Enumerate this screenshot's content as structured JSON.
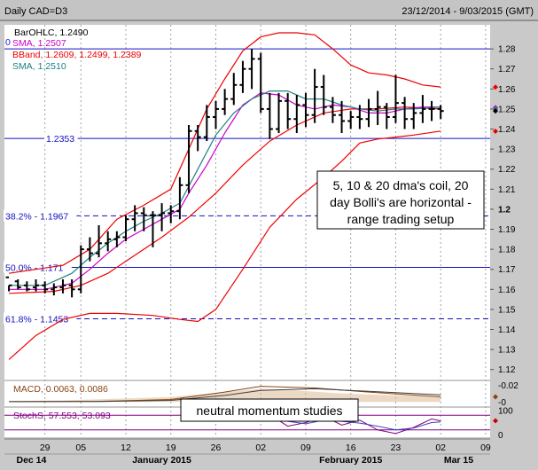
{
  "chart_data": {
    "type": "ohlc",
    "title": "Daily CAD=D3",
    "date_range": "23/12/2014 - 9/03/2015 (GMT)",
    "price_axis": {
      "ylim": [
        1.115,
        1.292
      ],
      "ticks": [
        "1.28",
        "1.27",
        "1.26",
        "1.25",
        "1.24",
        "1.23",
        "1.22",
        "1.21",
        "1.2",
        "1.19",
        "1.18",
        "1.17",
        "1.16",
        "1.15",
        "1.14",
        "1.13",
        "1.12"
      ]
    },
    "x_axis": {
      "ticks": [
        {
          "label": "29",
          "i": 4
        },
        {
          "label": "05",
          "i": 8
        },
        {
          "label": "12",
          "i": 13
        },
        {
          "label": "19",
          "i": 18
        },
        {
          "label": "26",
          "i": 23
        },
        {
          "label": "02",
          "i": 28
        },
        {
          "label": "09",
          "i": 33
        },
        {
          "label": "16",
          "i": 38
        },
        {
          "label": "23",
          "i": 43
        },
        {
          "label": "02",
          "i": 48
        },
        {
          "label": "09",
          "i": 53
        }
      ],
      "months": [
        {
          "label": "Dec 14",
          "i": 2.5
        },
        {
          "label": "January 2015",
          "i": 17
        },
        {
          "label": "February 2015",
          "i": 38
        },
        {
          "label": "Mar 15",
          "i": 50
        }
      ],
      "n_slots": 54
    },
    "legend": [
      {
        "text": "BarOHLC, 1.2490",
        "color": "#000000"
      },
      {
        "text": "SMA, 1.2507",
        "color": "#cc00cc"
      },
      {
        "text": "BBand, 1.2609, 1.2499, 1.2389",
        "color": "#ee0000"
      },
      {
        "text": "SMA, 1.2510",
        "color": "#208080"
      }
    ],
    "legend_prefix": "0",
    "right_markers": [
      {
        "y": 1.2609,
        "color": "#ee0000"
      },
      {
        "y": 1.2507,
        "color": "#cc00cc"
      },
      {
        "y": 1.2499,
        "color": "#208080"
      },
      {
        "y": 1.249,
        "color": "#000000"
      },
      {
        "y": 1.2389,
        "color": "#ee0000"
      }
    ],
    "reference_lines": [
      {
        "y": 1.28,
        "style": "solid",
        "label": ""
      },
      {
        "y": 1.2353,
        "style": "solid",
        "label": "1.2353"
      },
      {
        "y": 1.1967,
        "style": "dashed",
        "label": "38.2% - 1.1967"
      },
      {
        "y": 1.171,
        "style": "solid",
        "label": "50.0% - 1.171"
      },
      {
        "y": 1.1453,
        "style": "dashed",
        "label": "61.8% - 1.1453"
      }
    ],
    "bars": [
      [
        1.166,
        1.162,
        1.159,
        1.162
      ],
      [
        1.164,
        1.165,
        1.16,
        1.161
      ],
      [
        1.162,
        1.164,
        1.159,
        1.16
      ],
      [
        1.161,
        1.165,
        1.159,
        1.162
      ],
      [
        1.162,
        1.164,
        1.158,
        1.16
      ],
      [
        1.16,
        1.163,
        1.157,
        1.161
      ],
      [
        1.161,
        1.165,
        1.158,
        1.162
      ],
      [
        1.162,
        1.165,
        1.156,
        1.16
      ],
      [
        1.16,
        1.182,
        1.158,
        1.18
      ],
      [
        1.18,
        1.186,
        1.174,
        1.178
      ],
      [
        1.178,
        1.192,
        1.176,
        1.183
      ],
      [
        1.183,
        1.189,
        1.179,
        1.185
      ],
      [
        1.185,
        1.189,
        1.181,
        1.186
      ],
      [
        1.186,
        1.197,
        1.184,
        1.195
      ],
      [
        1.195,
        1.202,
        1.189,
        1.198
      ],
      [
        1.198,
        1.201,
        1.189,
        1.197
      ],
      [
        1.197,
        1.199,
        1.181,
        1.197
      ],
      [
        1.197,
        1.203,
        1.189,
        1.198
      ],
      [
        1.198,
        1.202,
        1.193,
        1.199
      ],
      [
        1.199,
        1.216,
        1.195,
        1.212
      ],
      [
        1.212,
        1.242,
        1.208,
        1.239
      ],
      [
        1.239,
        1.242,
        1.229,
        1.236
      ],
      [
        1.236,
        1.252,
        1.234,
        1.246
      ],
      [
        1.246,
        1.254,
        1.24,
        1.25
      ],
      [
        1.25,
        1.26,
        1.247,
        1.255
      ],
      [
        1.255,
        1.268,
        1.252,
        1.262
      ],
      [
        1.262,
        1.274,
        1.258,
        1.27
      ],
      [
        1.27,
        1.28,
        1.26,
        1.275
      ],
      [
        1.275,
        1.278,
        1.248,
        1.25
      ],
      [
        1.25,
        1.258,
        1.235,
        1.24
      ],
      [
        1.24,
        1.258,
        1.238,
        1.254
      ],
      [
        1.254,
        1.258,
        1.24,
        1.245
      ],
      [
        1.245,
        1.257,
        1.238,
        1.252
      ],
      [
        1.252,
        1.258,
        1.241,
        1.247
      ],
      [
        1.247,
        1.27,
        1.243,
        1.261
      ],
      [
        1.261,
        1.267,
        1.247,
        1.251
      ],
      [
        1.251,
        1.256,
        1.243,
        1.247
      ],
      [
        1.247,
        1.254,
        1.238,
        1.244
      ],
      [
        1.244,
        1.249,
        1.24,
        1.246
      ],
      [
        1.246,
        1.252,
        1.24,
        1.245
      ],
      [
        1.245,
        1.255,
        1.241,
        1.25
      ],
      [
        1.25,
        1.259,
        1.242,
        1.251
      ],
      [
        1.251,
        1.253,
        1.24,
        1.246
      ],
      [
        1.246,
        1.267,
        1.243,
        1.253
      ],
      [
        1.253,
        1.256,
        1.24,
        1.245
      ],
      [
        1.245,
        1.253,
        1.24,
        1.248
      ],
      [
        1.248,
        1.257,
        1.243,
        1.25
      ],
      [
        1.25,
        1.254,
        1.244,
        1.25
      ],
      [
        1.25,
        1.252,
        1.245,
        1.249
      ]
    ],
    "series": [
      {
        "name": "BBand",
        "color": "#ee0000",
        "values": [
          [
            0,
            1.125
          ],
          [
            3,
            1.137
          ],
          [
            6,
            1.145
          ],
          [
            9,
            1.148
          ],
          [
            12,
            1.148
          ],
          [
            16,
            1.147
          ],
          [
            19,
            1.145
          ],
          [
            21,
            1.144
          ],
          [
            23,
            1.15
          ],
          [
            26,
            1.17
          ],
          [
            29,
            1.191
          ],
          [
            32,
            1.205
          ],
          [
            35,
            1.216
          ],
          [
            37,
            1.224
          ],
          [
            39,
            1.233
          ],
          [
            41,
            1.235
          ],
          [
            43,
            1.236
          ],
          [
            45,
            1.237
          ],
          [
            48,
            1.239
          ]
        ]
      },
      {
        "name": "BBand",
        "color": "#ee0000",
        "values": [
          [
            0,
            1.168
          ],
          [
            3,
            1.17
          ],
          [
            6,
            1.172
          ],
          [
            9,
            1.18
          ],
          [
            12,
            1.195
          ],
          [
            15,
            1.202
          ],
          [
            18,
            1.21
          ],
          [
            20,
            1.23
          ],
          [
            22,
            1.25
          ],
          [
            24,
            1.265
          ],
          [
            26,
            1.279
          ],
          [
            28,
            1.286
          ],
          [
            30,
            1.288
          ],
          [
            32,
            1.288
          ],
          [
            34,
            1.287
          ],
          [
            36,
            1.28
          ],
          [
            38,
            1.272
          ],
          [
            40,
            1.268
          ],
          [
            42,
            1.267
          ],
          [
            44,
            1.265
          ],
          [
            46,
            1.262
          ],
          [
            48,
            1.261
          ]
        ]
      },
      {
        "name": "BBand",
        "color": "#ee0000",
        "values": [
          [
            0,
            1.158
          ],
          [
            5,
            1.159
          ],
          [
            8,
            1.162
          ],
          [
            11,
            1.168
          ],
          [
            14,
            1.177
          ],
          [
            17,
            1.186
          ],
          [
            20,
            1.196
          ],
          [
            23,
            1.208
          ],
          [
            26,
            1.222
          ],
          [
            29,
            1.234
          ],
          [
            32,
            1.242
          ],
          [
            35,
            1.248
          ],
          [
            38,
            1.25
          ],
          [
            41,
            1.25
          ],
          [
            44,
            1.251
          ],
          [
            48,
            1.25
          ]
        ]
      },
      {
        "name": "SMA",
        "color": "#cc00cc",
        "values": [
          [
            0,
            1.16
          ],
          [
            4,
            1.16
          ],
          [
            7,
            1.163
          ],
          [
            9,
            1.17
          ],
          [
            11,
            1.178
          ],
          [
            13,
            1.185
          ],
          [
            15,
            1.19
          ],
          [
            17,
            1.195
          ],
          [
            19,
            1.2
          ],
          [
            20,
            1.208
          ],
          [
            22,
            1.222
          ],
          [
            24,
            1.238
          ],
          [
            26,
            1.252
          ],
          [
            28,
            1.258
          ],
          [
            30,
            1.257
          ],
          [
            32,
            1.252
          ],
          [
            34,
            1.25
          ],
          [
            36,
            1.252
          ],
          [
            38,
            1.251
          ],
          [
            40,
            1.248
          ],
          [
            42,
            1.248
          ],
          [
            44,
            1.25
          ],
          [
            46,
            1.251
          ],
          [
            48,
            1.251
          ]
        ]
      },
      {
        "name": "SMA",
        "color": "#208080",
        "values": [
          [
            0,
            1.162
          ],
          [
            4,
            1.162
          ],
          [
            7,
            1.168
          ],
          [
            9,
            1.176
          ],
          [
            11,
            1.183
          ],
          [
            13,
            1.189
          ],
          [
            15,
            1.194
          ],
          [
            17,
            1.198
          ],
          [
            19,
            1.203
          ],
          [
            21,
            1.22
          ],
          [
            23,
            1.237
          ],
          [
            25,
            1.248
          ],
          [
            27,
            1.255
          ],
          [
            29,
            1.259
          ],
          [
            31,
            1.259
          ],
          [
            33,
            1.255
          ],
          [
            35,
            1.255
          ],
          [
            37,
            1.252
          ],
          [
            39,
            1.25
          ],
          [
            41,
            1.249
          ],
          [
            43,
            1.25
          ],
          [
            45,
            1.25
          ],
          [
            48,
            1.251
          ]
        ]
      }
    ],
    "annotations": [
      "5, 10 & 20 dma's coil, 20 day Bolli's are horizontal - range trading setup",
      "neutral momentum studies"
    ],
    "macd": {
      "label": "MACD, 0.0063, 0.0086",
      "ylim": [
        -0.005,
        0.025
      ],
      "ticks": [
        "0.02",
        "0"
      ],
      "macd_line": [
        [
          0,
          0.0005
        ],
        [
          10,
          0.0008
        ],
        [
          18,
          0.003
        ],
        [
          24,
          0.012
        ],
        [
          28,
          0.019
        ],
        [
          34,
          0.017
        ],
        [
          40,
          0.012
        ],
        [
          48,
          0.0063
        ]
      ],
      "signal_line": [
        [
          0,
          0.0005
        ],
        [
          10,
          0.0006
        ],
        [
          18,
          0.002
        ],
        [
          24,
          0.008
        ],
        [
          28,
          0.014
        ],
        [
          34,
          0.016
        ],
        [
          40,
          0.013
        ],
        [
          48,
          0.0086
        ]
      ],
      "hist": [
        [
          0,
          0.001
        ],
        [
          6,
          0.002
        ],
        [
          12,
          0.004
        ],
        [
          18,
          0.006
        ],
        [
          24,
          0.012
        ],
        [
          28,
          0.016
        ],
        [
          32,
          0.014
        ],
        [
          36,
          0.011
        ],
        [
          40,
          0.009
        ],
        [
          44,
          0.008
        ],
        [
          48,
          0.007
        ]
      ]
    },
    "stoch": {
      "label": "StochS, 57.553, 53.093",
      "ylim": [
        -10,
        110
      ],
      "ticks": [
        "100",
        "0"
      ],
      "k": [
        [
          27,
          95
        ],
        [
          29,
          82
        ],
        [
          31,
          35
        ],
        [
          33,
          50
        ],
        [
          35,
          75
        ],
        [
          37,
          40
        ],
        [
          39,
          60
        ],
        [
          41,
          20
        ],
        [
          43,
          5
        ],
        [
          45,
          30
        ],
        [
          47,
          65
        ],
        [
          48,
          57
        ]
      ],
      "d": [
        [
          27,
          92
        ],
        [
          29,
          88
        ],
        [
          31,
          55
        ],
        [
          33,
          45
        ],
        [
          35,
          60
        ],
        [
          37,
          55
        ],
        [
          39,
          48
        ],
        [
          41,
          35
        ],
        [
          43,
          20
        ],
        [
          45,
          28
        ],
        [
          47,
          50
        ],
        [
          48,
          53
        ]
      ],
      "levels": [
        80,
        20
      ]
    }
  }
}
